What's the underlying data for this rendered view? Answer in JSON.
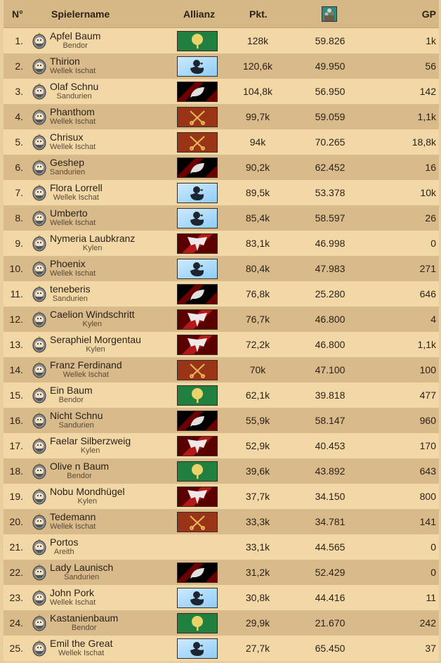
{
  "header": {
    "rank": "N°",
    "name": "Spielername",
    "alliance": "Allianz",
    "points": "Pkt.",
    "culture_icon": "citizens-icon",
    "gp": "GP"
  },
  "banner_colors": {
    "tree": "#21803f",
    "duck": "#8ecdf5",
    "leaf": "#000000",
    "keys": "#9a3416",
    "eagle": "#b41818"
  },
  "rows": [
    {
      "rank": "1.",
      "name": "Apfel Baum",
      "alliance": "Bendor",
      "banner": "tree",
      "points": "128k",
      "culture": "59.826",
      "gp": "1k"
    },
    {
      "rank": "2.",
      "name": "Thirion",
      "alliance": "Wellek Ischat",
      "banner": "duck",
      "points": "120,6k",
      "culture": "49.950",
      "gp": "56"
    },
    {
      "rank": "3.",
      "name": "Olaf Schnu",
      "alliance": "Sandurien",
      "banner": "leaf",
      "points": "104,8k",
      "culture": "56.950",
      "gp": "142"
    },
    {
      "rank": "4.",
      "name": "Phanthom",
      "alliance": "Wellek Ischat",
      "banner": "keys",
      "points": "99,7k",
      "culture": "59.059",
      "gp": "1,1k"
    },
    {
      "rank": "5.",
      "name": "Chrisux",
      "alliance": "Wellek Ischat",
      "banner": "keys",
      "points": "94k",
      "culture": "70.265",
      "gp": "18,8k"
    },
    {
      "rank": "6.",
      "name": "Geshep",
      "alliance": "Sandurien",
      "banner": "leaf",
      "points": "90,2k",
      "culture": "62.452",
      "gp": "16"
    },
    {
      "rank": "7.",
      "name": "Flora Lorrell",
      "alliance": "Wellek Ischat",
      "banner": "duck",
      "points": "89,5k",
      "culture": "53.378",
      "gp": "10k"
    },
    {
      "rank": "8.",
      "name": "Umberto",
      "alliance": "Wellek Ischat",
      "banner": "duck",
      "points": "85,4k",
      "culture": "58.597",
      "gp": "26"
    },
    {
      "rank": "9.",
      "name": "Nymeria Laubkranz",
      "alliance": "Kylen",
      "banner": "eagle",
      "points": "83,1k",
      "culture": "46.998",
      "gp": "0"
    },
    {
      "rank": "10.",
      "name": "Phoenix",
      "alliance": "Wellek Ischat",
      "banner": "duck",
      "points": "80,4k",
      "culture": "47.983",
      "gp": "271"
    },
    {
      "rank": "11.",
      "name": "teneberis",
      "alliance": "Sandurien",
      "banner": "leaf",
      "points": "76,8k",
      "culture": "25.280",
      "gp": "646"
    },
    {
      "rank": "12.",
      "name": "Caelion Windschritt",
      "alliance": "Kylen",
      "banner": "eagle",
      "points": "76,7k",
      "culture": "46.800",
      "gp": "4"
    },
    {
      "rank": "13.",
      "name": "Seraphiel Morgentau",
      "alliance": "Kylen",
      "banner": "eagle",
      "points": "72,2k",
      "culture": "46.800",
      "gp": "1,1k"
    },
    {
      "rank": "14.",
      "name": "Franz Ferdinand",
      "alliance": "Wellek Ischat",
      "banner": "keys",
      "points": "70k",
      "culture": "47.100",
      "gp": "100"
    },
    {
      "rank": "15.",
      "name": "Ein Baum",
      "alliance": "Bendor",
      "banner": "tree",
      "points": "62,1k",
      "culture": "39.818",
      "gp": "477"
    },
    {
      "rank": "16.",
      "name": "Nicht Schnu",
      "alliance": "Sandurien",
      "banner": "leaf",
      "points": "55,9k",
      "culture": "58.147",
      "gp": "960"
    },
    {
      "rank": "17.",
      "name": "Faelar Silberzweig",
      "alliance": "Kylen",
      "banner": "eagle",
      "points": "52,9k",
      "culture": "40.453",
      "gp": "170"
    },
    {
      "rank": "18.",
      "name": "Olive n Baum",
      "alliance": "Bendor",
      "banner": "tree",
      "points": "39,6k",
      "culture": "43.892",
      "gp": "643"
    },
    {
      "rank": "19.",
      "name": "Nobu Mondhügel",
      "alliance": "Kylen",
      "banner": "eagle",
      "points": "37,7k",
      "culture": "34.150",
      "gp": "800"
    },
    {
      "rank": "20.",
      "name": "Tedemann",
      "alliance": "Wellek Ischat",
      "banner": "keys",
      "points": "33,3k",
      "culture": "34.781",
      "gp": "141"
    },
    {
      "rank": "21.",
      "name": "Portos",
      "alliance": "Areith",
      "banner": "",
      "points": "33,1k",
      "culture": "44.565",
      "gp": "0"
    },
    {
      "rank": "22.",
      "name": "Lady Launisch",
      "alliance": "Sandurien",
      "banner": "leaf",
      "points": "31,2k",
      "culture": "52.429",
      "gp": "0"
    },
    {
      "rank": "23.",
      "name": "John Pork",
      "alliance": "Wellek Ischat",
      "banner": "duck",
      "points": "30,8k",
      "culture": "44.416",
      "gp": "11"
    },
    {
      "rank": "24.",
      "name": "Kastanienbaum",
      "alliance": "Bendor",
      "banner": "tree",
      "points": "29,9k",
      "culture": "21.670",
      "gp": "242"
    },
    {
      "rank": "25.",
      "name": "Emil the Great",
      "alliance": "Wellek Ischat",
      "banner": "duck",
      "points": "27,7k",
      "culture": "65.450",
      "gp": "37"
    }
  ]
}
